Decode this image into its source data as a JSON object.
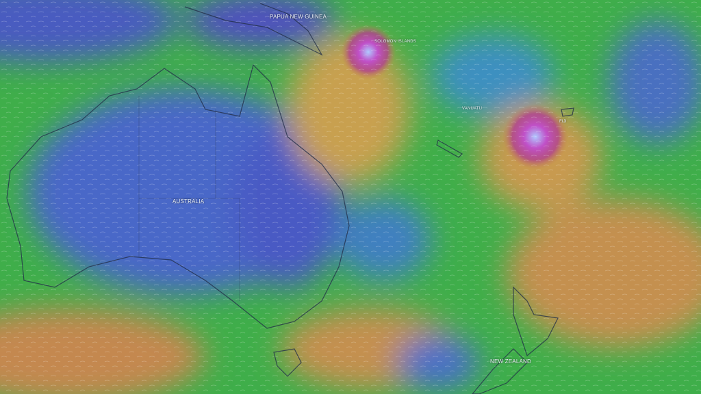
{
  "map": {
    "type": "wind-speed-overlay",
    "colors": {
      "calm": "#4a5fc9",
      "moderate": "#3fb04a",
      "strong": "#c8a050",
      "storm": "#c040b0"
    },
    "labels": {
      "papua_new_guinea": "PAPUA NEW GUINEA",
      "solomon_islands": "SOLOMON ISLANDS",
      "vanuatu": "VANUATU",
      "fiji": "FIJI",
      "australia": "AUSTRALIA",
      "new_zealand": "NEW ZEALAND"
    }
  }
}
